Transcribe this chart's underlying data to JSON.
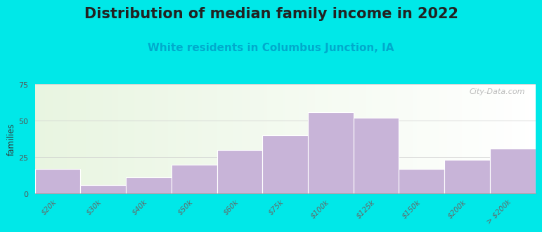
{
  "title": "Distribution of median family income in 2022",
  "subtitle": "White residents in Columbus Junction, IA",
  "ylabel": "families",
  "categories": [
    "$20k",
    "$30k",
    "$40k",
    "$50k",
    "$60k",
    "$75k",
    "$100k",
    "$125k",
    "$150k",
    "$200k",
    "> $200k"
  ],
  "values": [
    17,
    6,
    11,
    20,
    30,
    40,
    56,
    52,
    17,
    23,
    31
  ],
  "bar_color": "#c8b4d8",
  "bar_edge_color": "#ffffff",
  "ylim": [
    0,
    75
  ],
  "yticks": [
    0,
    25,
    50,
    75
  ],
  "background_outer": "#00e8e8",
  "title_fontsize": 15,
  "subtitle_fontsize": 11,
  "subtitle_color": "#00aacc",
  "watermark": "City-Data.com",
  "bar_width": 1.0
}
